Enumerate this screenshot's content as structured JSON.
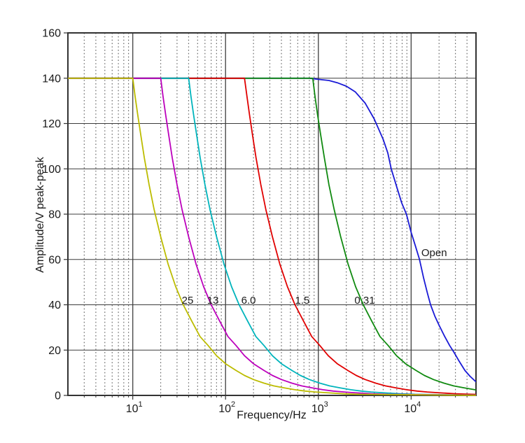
{
  "chart_data": {
    "type": "line",
    "title": "",
    "xlabel": "Frequency/Hz",
    "ylabel": "Amplitude/V peak-peak",
    "x_scale": "log",
    "xlim": [
      2,
      50000
    ],
    "ylim": [
      0,
      160
    ],
    "y_tick_step": 20,
    "y_ticks": [
      0,
      20,
      40,
      60,
      80,
      100,
      120,
      140,
      160
    ],
    "x_major_ticks": [
      {
        "label": "10",
        "exp": "1",
        "value": 10
      },
      {
        "label": "10",
        "exp": "2",
        "value": 100
      },
      {
        "label": "10",
        "exp": "3",
        "value": 1000
      },
      {
        "label": "10",
        "exp": "4",
        "value": 10000
      }
    ],
    "grid": {
      "h_major": true,
      "v_major": true,
      "v_minor": "dotted",
      "legend": "inline-labels"
    },
    "flat_level": 140,
    "axis_color": "#333333",
    "grid_major_color": "#4a4a4a",
    "grid_minor_color": "#6a6a6a",
    "text_color": "#1a1a1a",
    "series": [
      {
        "name": "Open",
        "color": "#1a1ad6",
        "points": [
          [
            2,
            140
          ],
          [
            800,
            140
          ],
          [
            1000,
            139.5
          ],
          [
            1300,
            139
          ],
          [
            1600,
            138
          ],
          [
            2000,
            136.5
          ],
          [
            2500,
            134
          ],
          [
            3200,
            129
          ],
          [
            4000,
            122
          ],
          [
            5000,
            113
          ],
          [
            5600,
            107
          ],
          [
            6100,
            100
          ],
          [
            7000,
            92
          ],
          [
            7900,
            85
          ],
          [
            8900,
            80
          ],
          [
            10000,
            72
          ],
          [
            11100,
            66
          ],
          [
            12300,
            60
          ],
          [
            13600,
            52
          ],
          [
            15000,
            45
          ],
          [
            16200,
            40
          ],
          [
            18000,
            35
          ],
          [
            20000,
            31
          ],
          [
            23000,
            26
          ],
          [
            26000,
            22
          ],
          [
            29000,
            19
          ],
          [
            33000,
            15
          ],
          [
            38000,
            11
          ],
          [
            43000,
            8.5
          ],
          [
            50000,
            6
          ]
        ]
      },
      {
        "name": "0.31",
        "color": "#108a10",
        "points": [
          [
            2,
            140
          ],
          [
            870,
            140
          ],
          [
            920,
            132
          ],
          [
            980,
            124
          ],
          [
            1060,
            115
          ],
          [
            1160,
            105
          ],
          [
            1300,
            93
          ],
          [
            1480,
            82
          ],
          [
            1740,
            70
          ],
          [
            2090,
            58
          ],
          [
            2520,
            48
          ],
          [
            3050,
            40
          ],
          [
            3740,
            33
          ],
          [
            4610,
            26
          ],
          [
            5660,
            22
          ],
          [
            6960,
            17.5
          ],
          [
            8700,
            14
          ],
          [
            11300,
            11
          ],
          [
            13900,
            8.8
          ],
          [
            17400,
            7
          ],
          [
            22600,
            5.4
          ],
          [
            28700,
            4.2
          ],
          [
            37400,
            3.3
          ],
          [
            48700,
            2.5
          ],
          [
            50000,
            2.4
          ]
        ]
      },
      {
        "name": "1.5",
        "color": "#e00000",
        "points": [
          [
            2,
            140
          ],
          [
            160,
            140
          ],
          [
            170,
            132
          ],
          [
            181,
            124
          ],
          [
            195,
            115
          ],
          [
            213,
            105
          ],
          [
            240,
            93
          ],
          [
            272,
            82
          ],
          [
            320,
            70
          ],
          [
            384,
            58
          ],
          [
            464,
            48
          ],
          [
            560,
            40
          ],
          [
            688,
            33
          ],
          [
            848,
            26
          ],
          [
            1040,
            22
          ],
          [
            1280,
            17.5
          ],
          [
            1600,
            14
          ],
          [
            2080,
            11
          ],
          [
            2560,
            8.8
          ],
          [
            3200,
            7
          ],
          [
            4160,
            5.4
          ],
          [
            5280,
            4.2
          ],
          [
            6880,
            3.3
          ],
          [
            8960,
            2.5
          ],
          [
            11600,
            1.9
          ],
          [
            14900,
            1.5
          ],
          [
            20800,
            1.1
          ],
          [
            30000,
            0.75
          ],
          [
            45000,
            0.5
          ],
          [
            50000,
            0.45
          ]
        ]
      },
      {
        "name": "6.0",
        "color": "#00b4bc",
        "points": [
          [
            2,
            140
          ],
          [
            40,
            140
          ],
          [
            42.4,
            132
          ],
          [
            45.2,
            124
          ],
          [
            48.8,
            115
          ],
          [
            53.2,
            105
          ],
          [
            60,
            93
          ],
          [
            68,
            82
          ],
          [
            80,
            70
          ],
          [
            96,
            58
          ],
          [
            116,
            48
          ],
          [
            140,
            40
          ],
          [
            172,
            33
          ],
          [
            212,
            26
          ],
          [
            260,
            22
          ],
          [
            320,
            17.5
          ],
          [
            400,
            14
          ],
          [
            520,
            11
          ],
          [
            640,
            8.8
          ],
          [
            800,
            7
          ],
          [
            1040,
            5.4
          ],
          [
            1320,
            4.2
          ],
          [
            1720,
            3.3
          ],
          [
            2240,
            2.5
          ],
          [
            2900,
            1.9
          ],
          [
            3700,
            1.5
          ],
          [
            5200,
            1.1
          ],
          [
            7600,
            0.74
          ],
          [
            11000,
            0.5
          ],
          [
            50000,
            0.11
          ]
        ]
      },
      {
        "name": "13",
        "color": "#bc00bc",
        "points": [
          [
            2,
            140
          ],
          [
            20,
            140
          ],
          [
            21.2,
            132
          ],
          [
            22.6,
            124
          ],
          [
            24.4,
            115
          ],
          [
            26.6,
            105
          ],
          [
            30,
            93
          ],
          [
            34,
            82
          ],
          [
            40,
            70
          ],
          [
            48,
            58
          ],
          [
            58,
            48
          ],
          [
            70,
            40
          ],
          [
            86,
            33
          ],
          [
            106,
            26
          ],
          [
            130,
            22
          ],
          [
            160,
            17.5
          ],
          [
            200,
            14
          ],
          [
            260,
            11
          ],
          [
            320,
            8.8
          ],
          [
            400,
            7
          ],
          [
            520,
            5.4
          ],
          [
            660,
            4.2
          ],
          [
            860,
            3.3
          ],
          [
            1120,
            2.5
          ],
          [
            1450,
            1.9
          ],
          [
            1900,
            1.5
          ],
          [
            2600,
            1.1
          ],
          [
            3800,
            0.74
          ],
          [
            5600,
            0.5
          ],
          [
            50000,
            0.06
          ]
        ]
      },
      {
        "name": "25",
        "color": "#bcbc00",
        "points": [
          [
            2,
            140
          ],
          [
            10,
            140
          ],
          [
            10.6,
            132
          ],
          [
            11.3,
            124
          ],
          [
            12.2,
            115
          ],
          [
            13.3,
            105
          ],
          [
            15,
            93
          ],
          [
            17,
            82
          ],
          [
            20,
            70
          ],
          [
            24,
            58
          ],
          [
            29,
            48
          ],
          [
            35,
            40
          ],
          [
            43,
            33
          ],
          [
            53,
            26
          ],
          [
            65,
            22
          ],
          [
            80,
            17.5
          ],
          [
            100,
            14
          ],
          [
            130,
            11
          ],
          [
            160,
            8.8
          ],
          [
            200,
            7
          ],
          [
            260,
            5.4
          ],
          [
            330,
            4.2
          ],
          [
            430,
            3.3
          ],
          [
            560,
            2.5
          ],
          [
            720,
            1.9
          ],
          [
            930,
            1.5
          ],
          [
            1300,
            1.1
          ],
          [
            1900,
            0.7
          ],
          [
            2800,
            0.5
          ],
          [
            50000,
            0.03
          ]
        ]
      }
    ],
    "annotations": [
      {
        "text": "25",
        "f": 39,
        "v": 42
      },
      {
        "text": "13",
        "f": 73,
        "v": 42
      },
      {
        "text": "6.0",
        "f": 177,
        "v": 42
      },
      {
        "text": "1.5",
        "f": 673,
        "v": 42
      },
      {
        "text": "0.31",
        "f": 3160,
        "v": 42
      },
      {
        "text": "Open",
        "f": 17700,
        "v": 63
      }
    ]
  }
}
